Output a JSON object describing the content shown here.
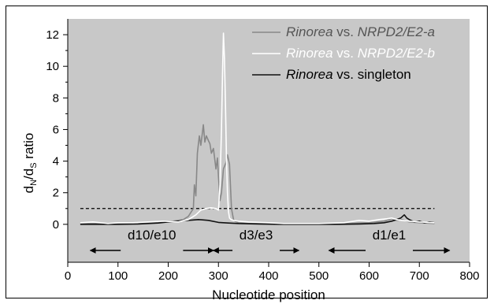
{
  "chart_data": {
    "type": "line",
    "title": "",
    "xlabel": "Nucleotide position",
    "ylabel_main": "d",
    "ylabel_sub1": "N",
    "ylabel_mid": "/d",
    "ylabel_sub2": "S",
    "ylabel_tail": " ratio",
    "xlim": [
      0,
      800
    ],
    "ylim": [
      -2.4,
      13
    ],
    "xticks": [
      0,
      100,
      200,
      300,
      400,
      500,
      600,
      700,
      800
    ],
    "yticks": [
      0,
      2,
      4,
      6,
      8,
      10,
      12
    ],
    "grid": false,
    "plot_background": "#c8c8c8",
    "legend_position": "top-right",
    "reference_line": {
      "y": 1,
      "x_start": 25,
      "x_end": 730,
      "style": "dashed",
      "color": "#000000"
    },
    "series": [
      {
        "name_italic": "Rinorea",
        "name_mid": " vs. ",
        "name_tail_italic": "NRPD2/E2-a",
        "color": "#888888",
        "x": [
          25,
          60,
          100,
          140,
          180,
          210,
          230,
          240,
          250,
          252,
          255,
          258,
          262,
          265,
          268,
          270,
          273,
          276,
          280,
          283,
          286,
          290,
          295,
          298,
          300,
          303,
          306,
          310,
          315,
          318,
          322,
          326,
          330,
          333,
          336,
          340,
          360,
          400,
          450,
          500,
          550,
          600,
          630,
          645,
          655,
          665,
          680,
          700,
          730
        ],
        "y": [
          0.05,
          0.05,
          0.05,
          0.1,
          0.15,
          0.2,
          0.3,
          0.5,
          1.0,
          2.5,
          1.8,
          4.5,
          5.6,
          5.0,
          5.8,
          6.3,
          5.2,
          5.6,
          5.3,
          5.1,
          4.5,
          4.8,
          3.5,
          4.2,
          3.0,
          1.5,
          2.0,
          3.5,
          3.9,
          4.4,
          3.8,
          1.0,
          0.3,
          0.2,
          0.15,
          0.1,
          0.05,
          0.05,
          0.05,
          0.05,
          0.05,
          0.1,
          0.2,
          0.35,
          0.25,
          0.3,
          0.15,
          0.1,
          0.05
        ]
      },
      {
        "name_italic": "Rinorea",
        "name_mid": " vs. ",
        "name_tail_italic": "NRPD2/E2-b",
        "color": "#ffffff",
        "x": [
          25,
          50,
          80,
          100,
          130,
          160,
          190,
          220,
          240,
          255,
          265,
          275,
          285,
          295,
          300,
          303,
          306,
          308,
          310,
          312,
          314,
          316,
          318,
          320,
          322,
          325,
          330,
          340,
          360,
          400,
          430,
          460,
          500,
          550,
          580,
          600,
          620,
          635,
          645,
          655,
          665,
          680,
          700,
          730
        ],
        "y": [
          0.1,
          0.15,
          0.05,
          0.1,
          0.1,
          0.15,
          0.2,
          0.15,
          0.3,
          0.6,
          0.9,
          1.0,
          1.05,
          1.0,
          0.9,
          2.5,
          6.0,
          9.5,
          12.1,
          10.5,
          7.5,
          4.0,
          2.0,
          0.8,
          0.4,
          0.3,
          0.25,
          0.2,
          0.15,
          0.1,
          0.05,
          0.05,
          0.05,
          0.1,
          0.25,
          0.2,
          0.3,
          0.35,
          0.4,
          0.3,
          0.25,
          0.2,
          0.15,
          0.1
        ]
      },
      {
        "name_italic": "Rinorea",
        "name_mid": " vs. singleton",
        "name_tail_italic": "",
        "color": "#111111",
        "x": [
          25,
          60,
          100,
          140,
          180,
          200,
          220,
          240,
          260,
          280,
          300,
          320,
          340,
          380,
          420,
          460,
          500,
          540,
          580,
          610,
          630,
          645,
          655,
          663,
          670,
          675,
          680,
          690,
          700,
          710,
          720,
          730
        ],
        "y": [
          0.0,
          0.0,
          0.0,
          0.02,
          0.08,
          0.15,
          0.2,
          0.25,
          0.3,
          0.25,
          0.12,
          0.08,
          0.05,
          0.02,
          0.0,
          0.0,
          0.0,
          0.0,
          0.02,
          0.05,
          0.1,
          0.2,
          0.3,
          0.4,
          0.6,
          0.4,
          0.3,
          0.15,
          0.2,
          0.1,
          0.15,
          0.1
        ]
      }
    ],
    "regions": [
      {
        "label": "d10/e10",
        "x_start": 45,
        "x_end": 290
      },
      {
        "label": "d3/e3",
        "x_start": 290,
        "x_end": 460
      },
      {
        "label": "d1/e1",
        "x_start": 520,
        "x_end": 760
      }
    ]
  }
}
